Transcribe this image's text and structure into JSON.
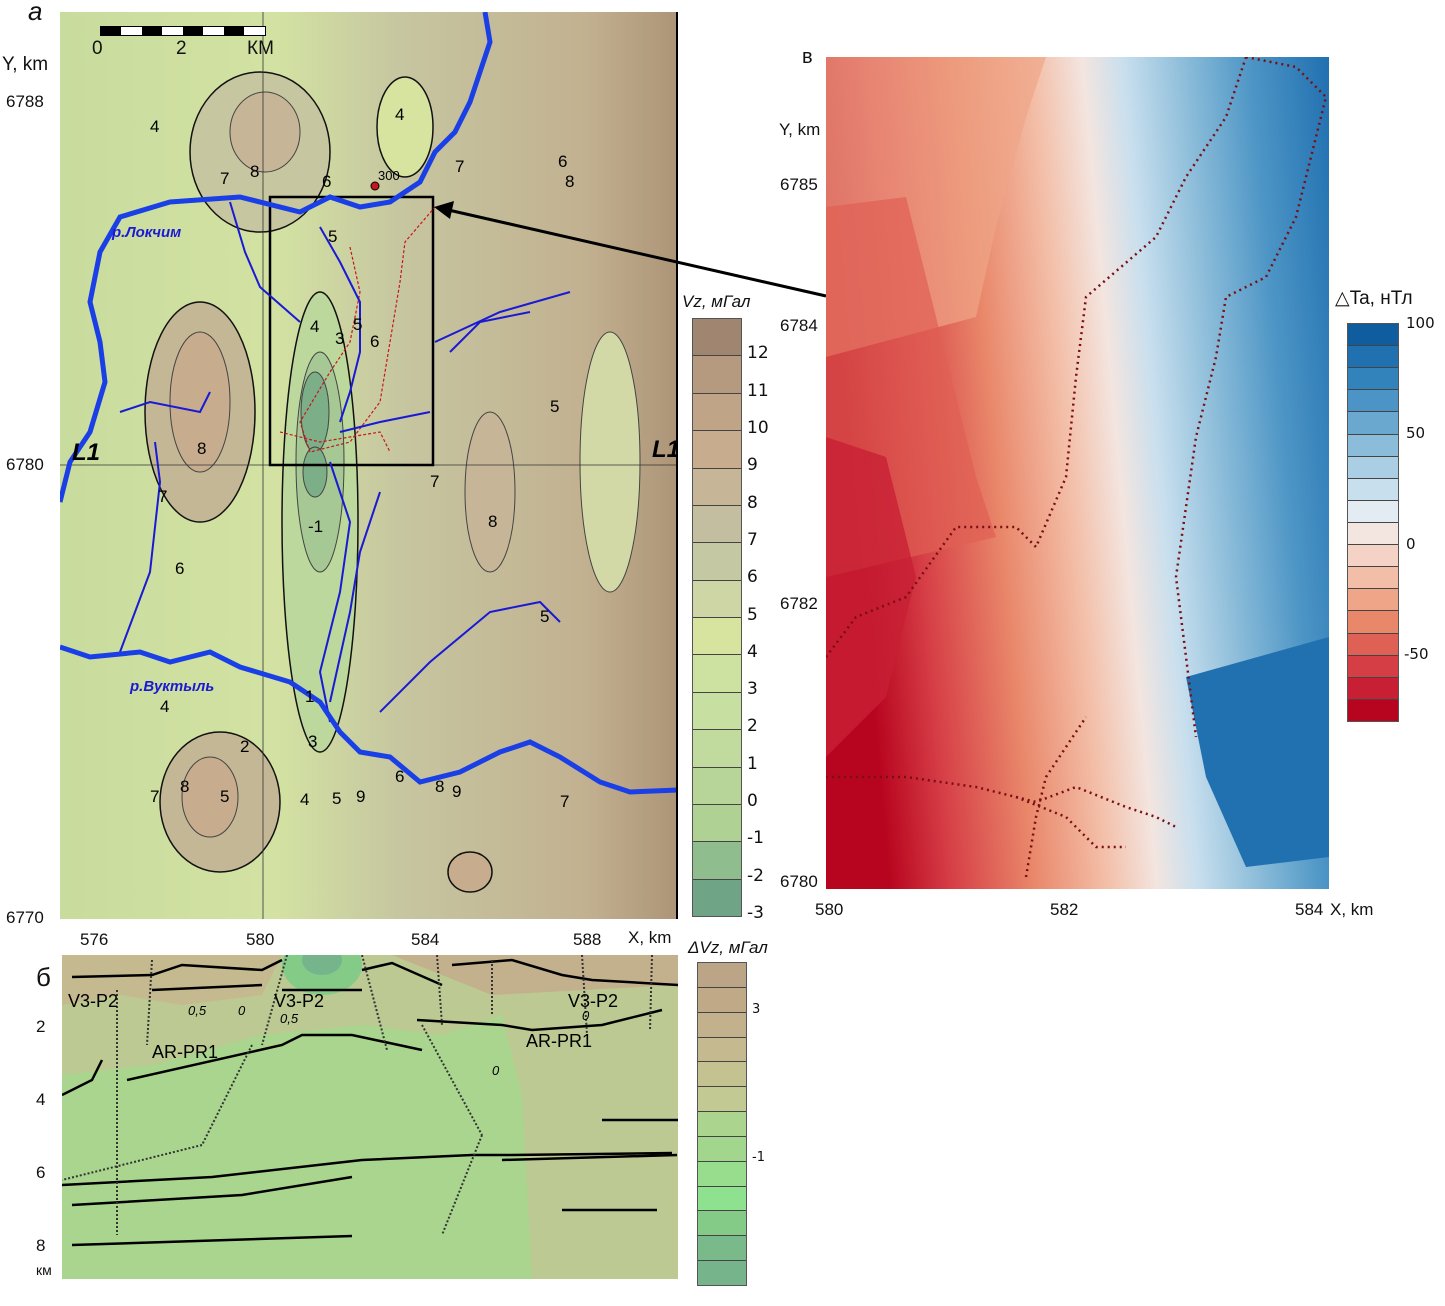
{
  "panel_a": {
    "letter": "а",
    "y_axis_title": "Y, km",
    "x_axis_title": "X, km",
    "y_ticks": [
      "6788",
      "6780",
      "6770"
    ],
    "x_ticks": [
      "576",
      "580",
      "584",
      "588"
    ],
    "scale_bar": {
      "labels": [
        "0",
        "2",
        "КМ"
      ]
    },
    "rivers": [
      "р.Локчим",
      "р.Вуктыль"
    ],
    "profile_labels": [
      "L1",
      "L1"
    ],
    "well_label": "300",
    "contour_labels": [
      "4",
      "8",
      "7",
      "6",
      "4",
      "7",
      "6",
      "8",
      "5",
      "4",
      "5",
      "6",
      "3",
      "8",
      "7",
      "L",
      "7",
      "1",
      "5",
      "8",
      "6",
      "5",
      "4",
      "2",
      "1",
      "3",
      "4",
      "5",
      "9",
      "6",
      "7",
      "8",
      "5",
      "7",
      "8",
      "9",
      "6",
      "-1"
    ],
    "colorbar": {
      "title": "Vz, мГал",
      "labels": [
        "12",
        "11",
        "10",
        "9",
        "8",
        "7",
        "6",
        "5",
        "4",
        "3",
        "2",
        "1",
        "0",
        "-1",
        "-2",
        "-3"
      ],
      "colors": [
        "#a08670",
        "#b59a80",
        "#c0a487",
        "#c7ad8e",
        "#c7b598",
        "#c3be9f",
        "#c4c8a3",
        "#cdd6a4",
        "#d6e4a0",
        "#cde2a0",
        "#c7dfa0",
        "#c1db9e",
        "#b7d598",
        "#b0d194",
        "#8fbd8e",
        "#6fa486"
      ]
    }
  },
  "panel_v": {
    "letter": "в",
    "y_axis_title": "Y, km",
    "x_axis_title": "X, km",
    "y_ticks": [
      "6785",
      "6784",
      "6782",
      "6780"
    ],
    "x_ticks": [
      "580",
      "582",
      "584"
    ],
    "colorbar": {
      "title": "△Ta, нТл",
      "labels": [
        "100",
        "50",
        "0",
        "-50"
      ],
      "colors": [
        "#0f5c9e",
        "#2170b0",
        "#3282bc",
        "#4b94c5",
        "#6aa8d0",
        "#8bbcd9",
        "#aacee3",
        "#c8dfee",
        "#e4ecf3",
        "#f3e5e0",
        "#f4d2c5",
        "#f3bea7",
        "#efa587",
        "#e9876a",
        "#df6054",
        "#d63e46",
        "#c81f35",
        "#b8051f"
      ]
    }
  },
  "panel_b": {
    "letter": "б",
    "depth_ticks": [
      "2",
      "4",
      "6",
      "8"
    ],
    "depth_unit": "км",
    "units": [
      "V3-P2",
      "V3-P2",
      "V3-P2",
      "AR-PR1",
      "AR-PR1"
    ],
    "contour_labels": [
      "0,5",
      "0",
      "0,5",
      "0",
      "0"
    ],
    "colorbar": {
      "title": "ΔVz, мГал",
      "labels": [
        "3",
        "-1"
      ],
      "colors": [
        "#bca486",
        "#bfa987",
        "#c2b18c",
        "#c4b98f",
        "#c5c292",
        "#c3c993",
        "#abd58e",
        "#a2d68d",
        "#98dd8d",
        "#8ee28f",
        "#84cb88",
        "#79b98a",
        "#76b58c"
      ]
    }
  }
}
